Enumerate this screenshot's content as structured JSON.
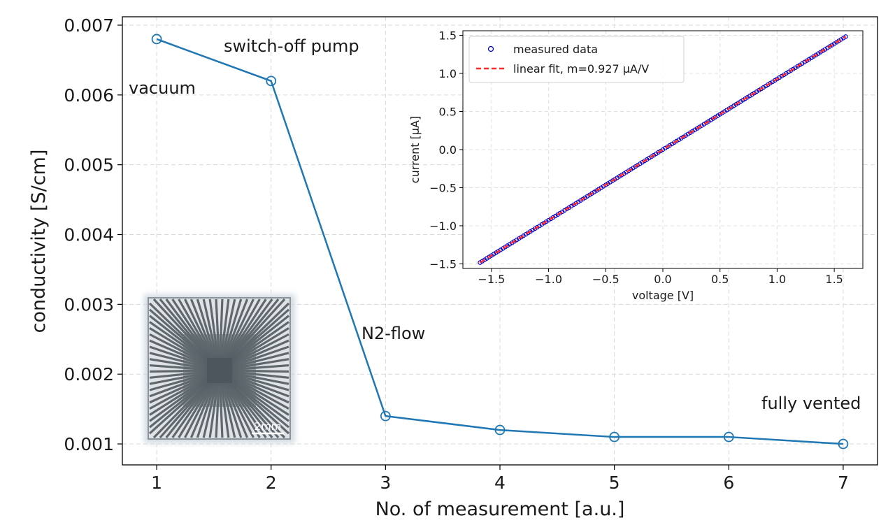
{
  "chart_data": [
    {
      "type": "line",
      "xlabel": "No. of measurement [a.u.]",
      "ylabel": "conductivity  [S/cm]",
      "xlim": [
        0.7,
        7.3
      ],
      "ylim": [
        0.0007,
        0.00712
      ],
      "xticks": [
        1,
        2,
        3,
        4,
        5,
        6,
        7
      ],
      "xtick_labels": [
        "1",
        "2",
        "3",
        "4",
        "5",
        "6",
        "7"
      ],
      "yticks": [
        0.001,
        0.002,
        0.003,
        0.004,
        0.005,
        0.006,
        0.007
      ],
      "ytick_labels": [
        "0.001",
        "0.002",
        "0.003",
        "0.004",
        "0.005",
        "0.006",
        "0.007"
      ],
      "grid": true,
      "marker": "open-circle",
      "series": [
        {
          "x": [
            1,
            2,
            3,
            4,
            5,
            6,
            7
          ],
          "values": [
            0.0068,
            0.0062,
            0.0014,
            0.0012,
            0.0011,
            0.0011,
            0.001
          ],
          "color": "#1f77b4"
        }
      ],
      "annotations": [
        {
          "text": "vacuum",
          "x": 1.1,
          "y": 0.0061
        },
        {
          "text": "switch-off pump",
          "x": 2.3,
          "y": 0.00667
        },
        {
          "text": "N2-flow",
          "x": 3.1,
          "y": 0.00161
        },
        {
          "text": "fully vented",
          "x": 6.6,
          "y": 0.00161
        }
      ],
      "inset_image": {
        "kind": "photo-micrograph",
        "scalebar_label": "2mm"
      }
    },
    {
      "type": "scatter",
      "xlabel": "voltage [V]",
      "ylabel": "current [µA]",
      "xlim": [
        -1.75,
        1.75
      ],
      "ylim": [
        -1.56,
        1.56
      ],
      "xticks": [
        -1.5,
        -1.0,
        -0.5,
        0.0,
        0.5,
        1.0,
        1.5
      ],
      "xtick_labels": [
        "−1.5",
        "−1.0",
        "−0.5",
        "0.0",
        "0.5",
        "1.0",
        "1.5"
      ],
      "yticks": [
        -1.5,
        -1.0,
        -0.5,
        0.0,
        0.5,
        1.0,
        1.5
      ],
      "ytick_labels": [
        "−1.5",
        "−1.0",
        "−0.5",
        "0.0",
        "0.5",
        "1.0",
        "1.5"
      ],
      "grid": true,
      "legend_position": "top-left",
      "series": [
        {
          "name": "measured data",
          "kind": "scatter",
          "x_range": [
            -1.6,
            1.6
          ],
          "slope": 0.927,
          "color": "#0000cc"
        },
        {
          "name": "linear fit, m=0.927 µA/V",
          "kind": "dashed-line",
          "x_range": [
            -1.6,
            1.6
          ],
          "slope": 0.927,
          "color": "#ff2a2a"
        }
      ]
    }
  ]
}
